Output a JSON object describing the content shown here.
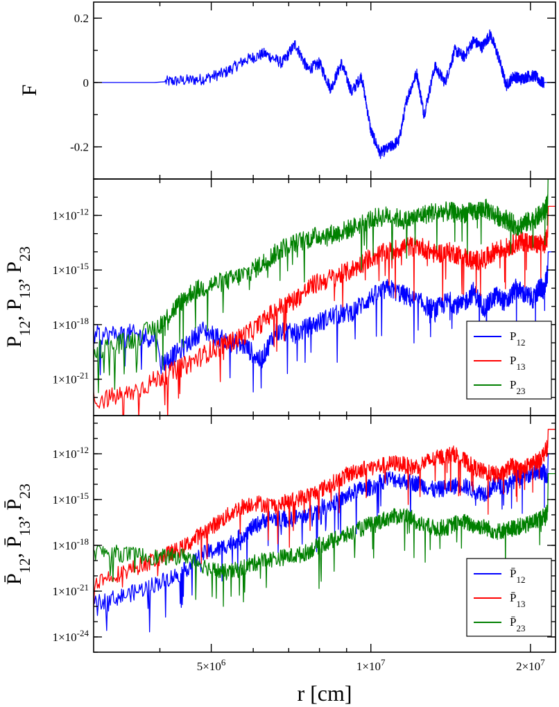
{
  "chart_data": [
    {
      "type": "line",
      "ylabel": "F",
      "ylim": [
        -0.3,
        0.25
      ],
      "yticks": [
        {
          "value": 0.2,
          "label": "0.2"
        },
        {
          "value": 0,
          "label": "0"
        },
        {
          "value": -0.2,
          "label": "-0.2"
        }
      ],
      "series": [
        {
          "color": "#0000ff",
          "x": [
            3000000.0,
            3500000.0,
            3900000.0,
            4300000.0,
            4800000.0,
            5300000.0,
            5800000.0,
            6300000.0,
            6800000.0,
            7200000.0,
            7600000.0,
            8000000.0,
            8400000.0,
            8800000.0,
            9200000.0,
            9600000.0,
            10000000.0,
            10400000.0,
            10900000.0,
            11300000.0,
            11700000.0,
            12200000.0,
            12600000.0,
            13200000.0,
            13800000.0,
            14400000.0,
            15000000.0,
            15600000.0,
            16200000.0,
            16800000.0,
            17400000.0,
            18000000.0,
            18600000.0,
            19200000.0,
            19800000.0,
            20400000.0,
            21000000.0,
            21600000.0,
            22300000.0
          ],
          "values": [
            0,
            0,
            0,
            0.005,
            0.01,
            0.03,
            0.07,
            0.09,
            0.06,
            0.12,
            0.04,
            0.06,
            -0.02,
            0.06,
            -0.03,
            0.02,
            -0.15,
            -0.22,
            -0.2,
            -0.18,
            -0.05,
            0.03,
            -0.1,
            0.05,
            0.0,
            0.1,
            0.08,
            0.13,
            0.11,
            0.15,
            0.08,
            -0.01,
            0.02,
            0.01,
            0.02,
            0.02,
            0.0,
            0,
            0
          ]
        }
      ]
    },
    {
      "type": "line",
      "ylabel": "P<sub>12</sub>, P<sub>13</sub>, P<sub>23</sub>",
      "yscale": "log",
      "ylim": [
        -23,
        -10
      ],
      "yticks": [
        {
          "value": -12,
          "label": "1×10^-12"
        },
        {
          "value": -15,
          "label": "1×10^-15"
        },
        {
          "value": -18,
          "label": "1×10^-18"
        },
        {
          "value": -21,
          "label": "1×10^-21"
        }
      ],
      "legend": "bottom-right",
      "series": [
        {
          "name": "P12",
          "color": "#0000ff",
          "x": [
            3000000.0,
            3500000.0,
            3950000.0,
            4000000.0,
            4300000.0,
            4800000.0,
            5300000.0,
            5800000.0,
            6200000.0,
            6600000.0,
            7200000.0,
            7800000.0,
            8500000.0,
            9200000.0,
            10000000.0,
            10800000.0,
            11600000.0,
            12400000.0,
            13200000.0,
            14000000.0,
            14800000.0,
            15600000.0,
            16400000.0,
            17200000.0,
            18000000.0,
            18800000.0,
            19600000.0,
            20400000.0,
            20800000.0,
            21200000.0,
            21550000.0,
            21600000.0,
            22300000.0
          ],
          "values": [
            -18.6,
            -18.5,
            -18.8,
            -20.2,
            -19.6,
            -18.3,
            -18.9,
            -19.2,
            -20.0,
            -18.4,
            -18.5,
            -18.0,
            -17.5,
            -17.3,
            -16.5,
            -16.0,
            -16.4,
            -16.8,
            -17.2,
            -16.7,
            -17.0,
            -16.2,
            -17.1,
            -16.4,
            -16.8,
            -16.0,
            -16.4,
            -16.6,
            -15.9,
            -16.1,
            -15.1,
            -14.0,
            -14.0
          ]
        },
        {
          "name": "P13",
          "color": "#ff0000",
          "x": [
            3000000.0,
            3500000.0,
            4000000.0,
            4500000.0,
            5000000.0,
            5500000.0,
            6000000.0,
            6600000.0,
            7200000.0,
            7800000.0,
            8500000.0,
            9200000.0,
            10000000.0,
            10800000.0,
            11600000.0,
            12400000.0,
            13200000.0,
            14000000.0,
            14800000.0,
            15600000.0,
            16400000.0,
            17200000.0,
            18000000.0,
            18800000.0,
            19600000.0,
            20400000.0,
            21200000.0,
            21550000.0,
            21600000.0,
            22300000.0
          ],
          "values": [
            -22.2,
            -21.8,
            -20.9,
            -20.2,
            -19.4,
            -18.9,
            -18.3,
            -17.2,
            -16.6,
            -15.8,
            -15.4,
            -15.0,
            -14.3,
            -14.0,
            -13.7,
            -13.7,
            -14.1,
            -14.0,
            -14.2,
            -14.5,
            -14.4,
            -13.9,
            -13.8,
            -13.5,
            -13.4,
            -13.6,
            -13.6,
            -13.2,
            -11.5,
            -11.5
          ]
        },
        {
          "name": "P23",
          "color": "#008000",
          "x": [
            3000000.0,
            3500000.0,
            4000000.0,
            4300000.0,
            4600000.0,
            5000000.0,
            5500000.0,
            6000000.0,
            6400000.0,
            6800000.0,
            7400000.0,
            8000000.0,
            8600000.0,
            9200000.0,
            10000000.0,
            10800000.0,
            11600000.0,
            12400000.0,
            13200000.0,
            14000000.0,
            14800000.0,
            15600000.0,
            16400000.0,
            17200000.0,
            18000000.0,
            18800000.0,
            19600000.0,
            20400000.0,
            21200000.0,
            21550000.0,
            21600000.0,
            22300000.0
          ],
          "values": [
            -19.4,
            -18.9,
            -18.0,
            -17.0,
            -16.2,
            -15.8,
            -15.5,
            -15.0,
            -14.4,
            -13.8,
            -13.4,
            -13.1,
            -13.0,
            -12.7,
            -12.2,
            -12.0,
            -12.3,
            -12.0,
            -11.8,
            -11.8,
            -11.9,
            -11.8,
            -11.6,
            -12.0,
            -12.2,
            -12.6,
            -12.4,
            -12.2,
            -11.8,
            -11.4,
            -9.6,
            -9.6
          ]
        }
      ]
    },
    {
      "type": "line",
      "ylabel": "P̄<sub>12</sub>, P̄<sub>13</sub>, P̄<sub>23</sub>",
      "yscale": "log",
      "ylim": [
        -25,
        -9.5
      ],
      "yticks": [
        {
          "value": -12,
          "label": "1×10^-12"
        },
        {
          "value": -15,
          "label": "1×10^-15"
        },
        {
          "value": -18,
          "label": "1×10^-18"
        },
        {
          "value": -21,
          "label": "1×10^-21"
        },
        {
          "value": -24,
          "label": "1×10^-24"
        }
      ],
      "legend": "bottom-right",
      "series": [
        {
          "name": "P̄12",
          "color": "#0000ff",
          "x": [
            3000000.0,
            3500000.0,
            4000000.0,
            4400000.0,
            4800000.0,
            5200000.0,
            5600000.0,
            6000000.0,
            6400000.0,
            7000000.0,
            7600000.0,
            8200000.0,
            8800000.0,
            9400000.0,
            10000000.0,
            10800000.0,
            11600000.0,
            12400000.0,
            13200000.0,
            14000000.0,
            14800000.0,
            15600000.0,
            16400000.0,
            17200000.0,
            18000000.0,
            18800000.0,
            19600000.0,
            20400000.0,
            21200000.0,
            21550000.0,
            21600000.0,
            22300000.0
          ],
          "values": [
            -21.8,
            -21.2,
            -20.4,
            -19.8,
            -18.6,
            -18.2,
            -17.6,
            -16.8,
            -16.2,
            -16.3,
            -16.0,
            -15.4,
            -15.0,
            -14.4,
            -14.2,
            -13.6,
            -13.8,
            -14.0,
            -14.4,
            -14.2,
            -14.0,
            -14.4,
            -14.6,
            -14.0,
            -14.2,
            -13.6,
            -13.4,
            -13.2,
            -13.2,
            -13.6,
            -12.0,
            -12.0
          ]
        },
        {
          "name": "P̄13",
          "color": "#ff0000",
          "x": [
            3000000.0,
            3500000.0,
            4000000.0,
            4400000.0,
            4800000.0,
            5200000.0,
            5600000.0,
            6000000.0,
            6600000.0,
            7200000.0,
            7800000.0,
            8400000.0,
            9000000.0,
            9600000.0,
            10400000.0,
            11200000.0,
            12000000.0,
            12800000.0,
            13600000.0,
            14400000.0,
            15200000.0,
            16000000.0,
            16800000.0,
            17600000.0,
            18400000.0,
            19200000.0,
            20000000.0,
            20800000.0,
            21550000.0,
            21600000.0,
            22300000.0
          ],
          "values": [
            -20.4,
            -19.6,
            -18.8,
            -18.2,
            -17.2,
            -16.4,
            -15.6,
            -15.2,
            -15.4,
            -15.0,
            -14.6,
            -14.0,
            -13.4,
            -13.0,
            -12.8,
            -12.6,
            -12.9,
            -12.5,
            -12.2,
            -12.0,
            -12.6,
            -13.1,
            -13.3,
            -13.4,
            -12.8,
            -13.1,
            -12.7,
            -12.4,
            -11.6,
            -10.4,
            -10.4
          ]
        },
        {
          "name": "P̄23",
          "color": "#008000",
          "x": [
            3000000.0,
            3500000.0,
            4000000.0,
            4500000.0,
            5000000.0,
            5400000.0,
            5800000.0,
            6200000.0,
            6800000.0,
            7400000.0,
            8000000.0,
            8600000.0,
            9200000.0,
            10000000.0,
            10800000.0,
            11600000.0,
            12400000.0,
            13200000.0,
            14000000.0,
            14800000.0,
            15600000.0,
            16400000.0,
            17200000.0,
            18000000.0,
            18800000.0,
            19600000.0,
            20400000.0,
            21200000.0,
            21550000.0,
            21600000.0,
            22300000.0
          ],
          "values": [
            -18.4,
            -18.6,
            -18.8,
            -18.7,
            -19.6,
            -19.8,
            -19.4,
            -19.0,
            -18.8,
            -18.6,
            -18.0,
            -17.6,
            -17.2,
            -16.6,
            -16.2,
            -16.0,
            -16.6,
            -16.9,
            -16.8,
            -16.4,
            -16.7,
            -16.8,
            -17.1,
            -17.0,
            -16.8,
            -16.7,
            -16.4,
            -16.1,
            -15.8,
            -13.3,
            -13.3
          ]
        }
      ]
    }
  ],
  "x_axis": {
    "label": "r [cm]",
    "scale": "log",
    "range": [
      3000000.0,
      22300000.0
    ],
    "ticks": [
      {
        "value": 5000000.0,
        "label": "5×10^6"
      },
      {
        "value": 10000000.0,
        "label": "1×10^7"
      },
      {
        "value": 20000000.0,
        "label": "2×10^7"
      }
    ]
  }
}
